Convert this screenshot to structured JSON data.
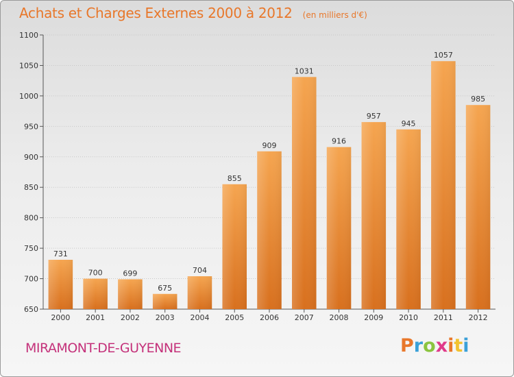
{
  "header": {
    "title": "Achats et Charges Externes 2000 à 2012",
    "unit": "(en milliers d'€)"
  },
  "footer": {
    "commune": "MIRAMONT-DE-GUYENNE",
    "logo_text": "Proxiti",
    "logo_colors": [
      "#e8772a",
      "#3aa0d8",
      "#8bc440",
      "#e03a8a",
      "#e8772a",
      "#f2c230",
      "#3aa0d8"
    ]
  },
  "chart_data": {
    "type": "bar",
    "categories": [
      "2000",
      "2001",
      "2002",
      "2003",
      "2004",
      "2005",
      "2006",
      "2007",
      "2008",
      "2009",
      "2010",
      "2011",
      "2012"
    ],
    "values": [
      731,
      700,
      699,
      675,
      704,
      855,
      909,
      1031,
      916,
      957,
      945,
      1057,
      985
    ],
    "title": "Achats et Charges Externes 2000 à 2012",
    "xlabel": "",
    "ylabel": "",
    "ylim": [
      650,
      1100
    ],
    "yticks": [
      650,
      700,
      750,
      800,
      850,
      900,
      950,
      1000,
      1050,
      1100
    ],
    "grid": true,
    "bar_color_top": "#f5a550",
    "bar_color_bottom": "#d8701e"
  }
}
